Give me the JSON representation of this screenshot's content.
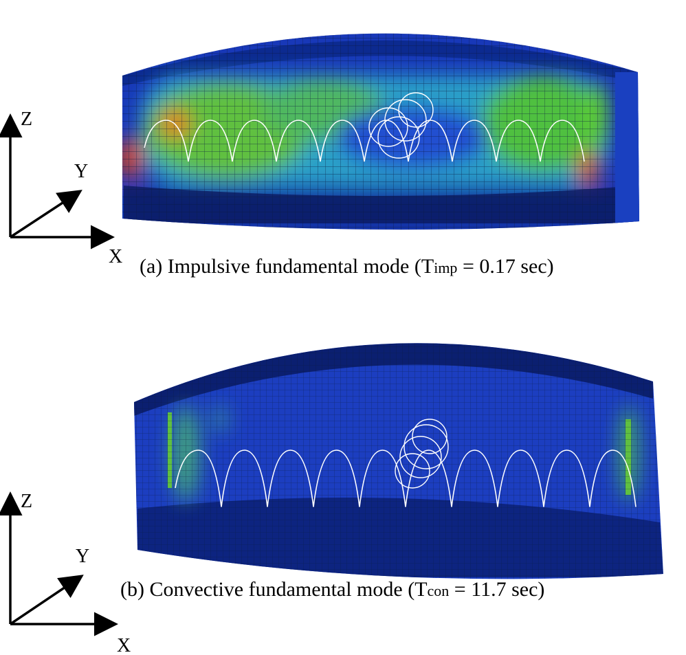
{
  "panels": [
    {
      "axes": {
        "z": "Z",
        "y": "Y",
        "x": "X"
      },
      "caption": {
        "before": "(a) Impulsive fundamental mode (T",
        "sub": "imp",
        "after": " = 0.17 sec)"
      }
    },
    {
      "axes": {
        "z": "Z",
        "y": "Y",
        "x": "X"
      },
      "caption": {
        "before": "(b) Convective fundamental mode (T",
        "sub": "con",
        "after": " = 11.7 sec)"
      }
    }
  ]
}
